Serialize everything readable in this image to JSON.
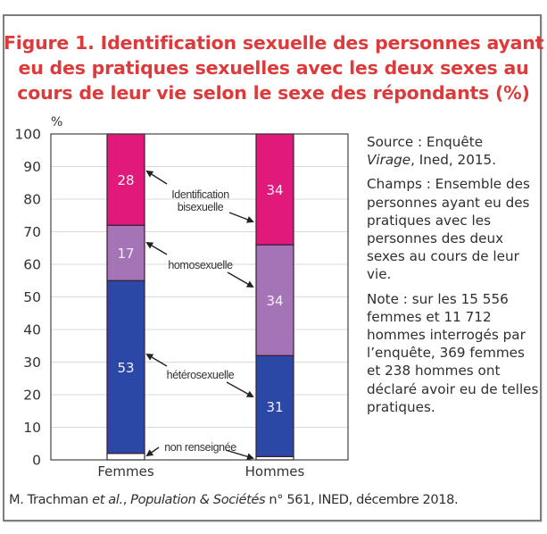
{
  "title_lines": [
    "Figure 1. Identification sexuelle des personnes ayant",
    "eu des pratiques sexuelles avec les deux sexes au",
    "cours de leur vie selon le sexe des répondants (%)"
  ],
  "side_notes": {
    "source_prefix": "Source : Enquête",
    "source_italic": "Virage",
    "source_suffix": ", Ined, 2015.",
    "champs": "Champs : Ensemble des personnes ayant eu des pratiques avec les personnes des deux sexes au cours de leur vie.",
    "note": "Note : sur les 15 556 femmes et 11 712 hommes interrogés par l’enquête, 369 femmes et 238 hommes ont déclaré avoir eu de telles pratiques."
  },
  "footer": {
    "author": "M. Trachman ",
    "etal": "et al.",
    "sep": ", ",
    "journal": "Population & Sociétés",
    "rest": " n° 561, INED, décembre 2018."
  },
  "colors": {
    "title": "#dd3b3b",
    "bisexuelle": "#e0197a",
    "homosexuelle": "#a574b6",
    "heterosexuelle": "#2c48a6",
    "non_renseignee": "#ffffff",
    "bar_border": "#3a1f33",
    "grid": "#d9d9d9"
  },
  "chart_data": {
    "type": "bar",
    "stacked": true,
    "title": "Figure 1. Identification sexuelle des personnes ayant eu des pratiques sexuelles avec les deux sexes au cours de leur vie selon le sexe des répondants (%)",
    "xlabel": "",
    "ylabel": "%",
    "ylim": [
      0,
      100
    ],
    "yticks": [
      0,
      10,
      20,
      30,
      40,
      50,
      60,
      70,
      80,
      90,
      100
    ],
    "grid": true,
    "legend": "inline annotations with arrows between bars",
    "categories": [
      "Femmes",
      "Hommes"
    ],
    "series": [
      {
        "name": "non renseignée",
        "key": "non_renseignee",
        "values": [
          2,
          1
        ],
        "labels": [
          "2",
          "1"
        ]
      },
      {
        "name": "hétérosexuelle",
        "key": "heterosexuelle",
        "values": [
          53,
          31
        ],
        "labels": [
          "53",
          "31"
        ]
      },
      {
        "name": "homosexuelle",
        "key": "homosexuelle",
        "values": [
          17,
          34
        ],
        "labels": [
          "17",
          "34"
        ]
      },
      {
        "name": "Identification bisexuelle",
        "key": "bisexuelle",
        "values": [
          28,
          34
        ],
        "labels": [
          "28",
          "34"
        ]
      }
    ],
    "annotations": [
      {
        "series": "bisexuelle",
        "lines": [
          "Identification",
          "bisexuelle"
        ]
      },
      {
        "series": "homosexuelle",
        "lines": [
          "homosexuelle"
        ]
      },
      {
        "series": "heterosexuelle",
        "lines": [
          "hétérosexuelle"
        ]
      },
      {
        "series": "non_renseignee",
        "lines": [
          "non renseignée"
        ]
      }
    ]
  }
}
